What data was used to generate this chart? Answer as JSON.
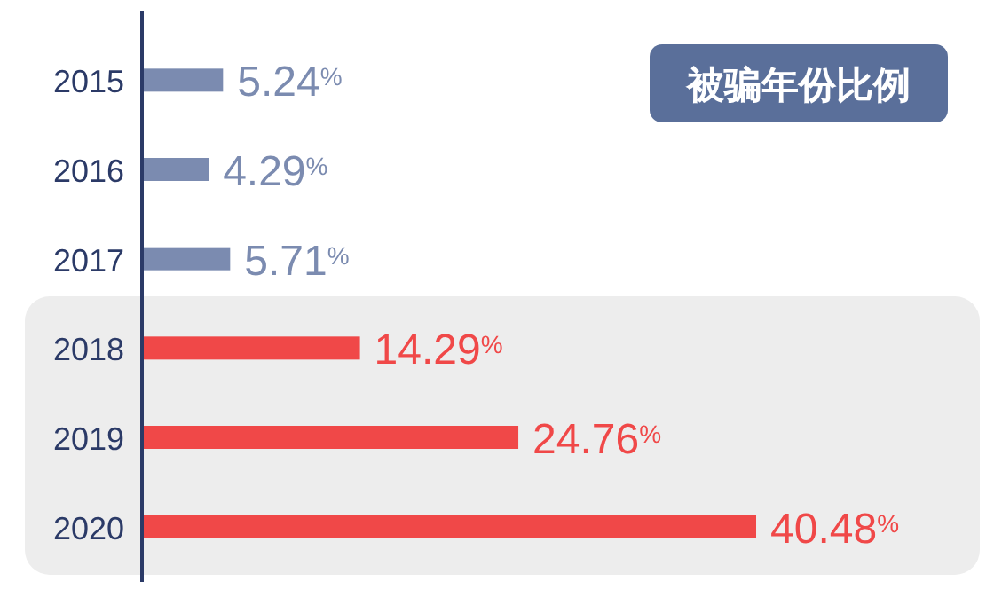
{
  "chart_data": {
    "type": "bar",
    "orientation": "horizontal",
    "title": "被骗年份比例",
    "categories": [
      "2015",
      "2016",
      "2017",
      "2018",
      "2019",
      "2020"
    ],
    "values": [
      5.24,
      4.29,
      5.71,
      14.29,
      24.76,
      40.48
    ],
    "colors": [
      "#7b8bb0",
      "#7b8bb0",
      "#7b8bb0",
      "#f04848",
      "#f04848",
      "#f04848"
    ],
    "value_labels": [
      "5.24$^{%}$",
      "4.29$^{%}$",
      "5.71$^{%}$",
      "14.29$^{%}$",
      "24.76$^{%}$",
      "40.48$^{%}$"
    ],
    "bands": [
      {
        "axis": "y",
        "from": "2018",
        "to": "2020",
        "color": "#ededed"
      }
    ]
  }
}
